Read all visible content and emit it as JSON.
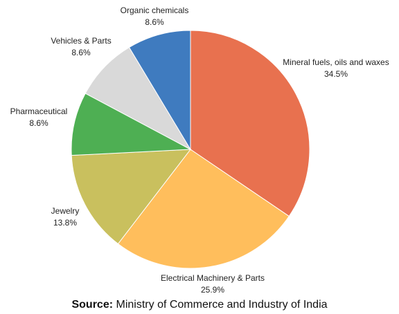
{
  "chart_data": {
    "type": "pie",
    "title": "",
    "slices": [
      {
        "label": "Mineral fuels, oils and waxes",
        "value": 34.5,
        "value_label": "34.5%",
        "color": "#E8714F"
      },
      {
        "label": "Electrical Machinery & Parts",
        "value": 25.9,
        "value_label": "25.9%",
        "color": "#FFBE5C"
      },
      {
        "label": "Jewelry",
        "value": 13.8,
        "value_label": "13.8%",
        "color": "#C9C05E"
      },
      {
        "label": "Pharmaceutical",
        "value": 8.6,
        "value_label": "8.6%",
        "color": "#4EAF53"
      },
      {
        "label": "Vehicles & Parts",
        "value": 8.6,
        "value_label": "8.6%",
        "color": "#D9D9D9"
      },
      {
        "label": "Organic chemicals",
        "value": 8.6,
        "value_label": "8.6%",
        "color": "#3F7BBF"
      }
    ],
    "start_angle": "12 o'clock",
    "direction": "clockwise"
  },
  "source": {
    "prefix": "Source:",
    "text": " Ministry of Commerce and Industry of India"
  }
}
